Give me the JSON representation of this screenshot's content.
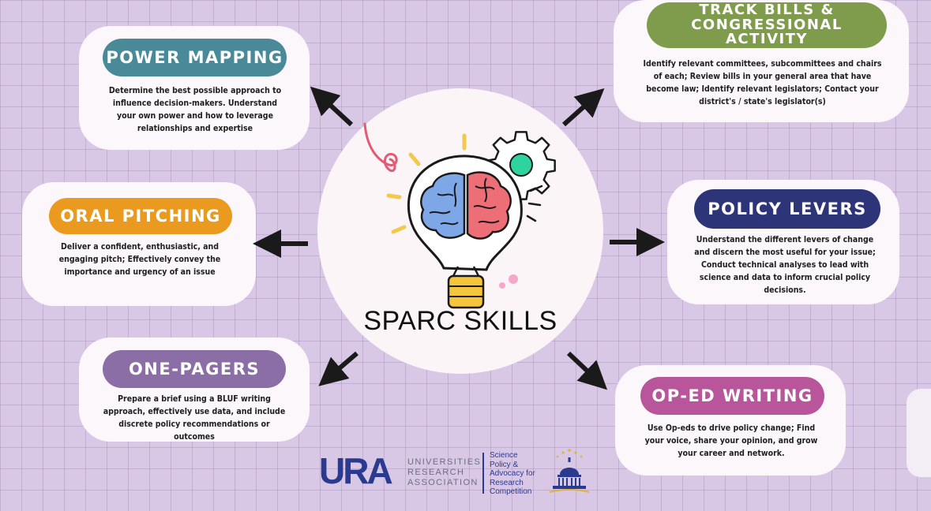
{
  "hub": {
    "title": "SPARC SKILLS"
  },
  "skills": {
    "power_mapping": {
      "title": "POWER MAPPING",
      "color": "#4a8a98",
      "description": "Determine the best possible approach to influence decision-makers. Understand your own power and how to leverage relationships and expertise"
    },
    "track_bills": {
      "title": "TRACK BILLS & CONGRESSIONAL ACTIVITY",
      "color": "#7f9c4c",
      "description": "Identify relevant committees, subcommittees and chairs of each; Review bills in your general area that have become law; Identify relevant legislators; Contact your district's / state's legislator(s)"
    },
    "oral_pitching": {
      "title": "ORAL PITCHING",
      "color": "#ea9a1f",
      "description": "Deliver a confident, enthusiastic, and engaging pitch; Effectively convey the importance and urgency of an issue"
    },
    "policy_levers": {
      "title": "POLICY LEVERS",
      "color": "#2e3478",
      "description": "Understand the different levers of change and discern the most useful for your issue; Conduct technical analyses to lead with science and data to inform crucial policy decisions."
    },
    "one_pagers": {
      "title": "ONE-PAGERS",
      "color": "#8c6ea6",
      "description": "Prepare a brief using a BLUF writing approach, effectively use data, and include discrete policy recommendations or outcomes"
    },
    "op_ed_writing": {
      "title": "OP-ED WRITING",
      "color": "#b8559b",
      "description": "Use Op-eds to drive policy change; Find your voice, share your opinion, and grow your career and network."
    }
  },
  "footer": {
    "ura_logo": "URA",
    "ura_line1": "UNIVERSITIES",
    "ura_line2": "RESEARCH",
    "ura_line3": "ASSOCIATION",
    "sparc_line1": "Science",
    "sparc_line2": "Policy &",
    "sparc_line3": "Advocacy for",
    "sparc_line4": "Research",
    "sparc_line5": "Competition"
  }
}
